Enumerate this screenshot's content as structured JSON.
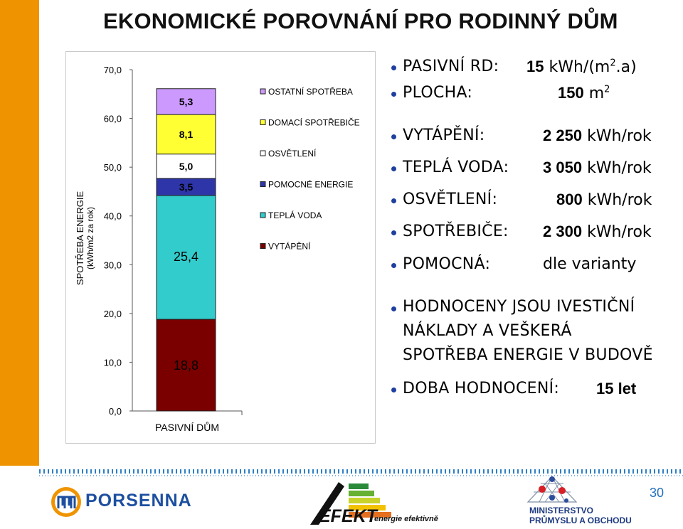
{
  "title": "EKONOMICKÉ POROVNÁNÍ PRO RODINNÝ DŮM",
  "chart_data": {
    "type": "bar",
    "stacked": true,
    "categories": [
      "PASIVNÍ DŮM"
    ],
    "ylabel": "SPOTŘEBA ENERGIE (kWh/m2 za rok)",
    "ylim": [
      0,
      70
    ],
    "yticks": [
      "0,0",
      "10,0",
      "20,0",
      "30,0",
      "40,0",
      "50,0",
      "60,0",
      "70,0"
    ],
    "series": [
      {
        "name": "VYTÁPĚNÍ",
        "values": [
          18.8
        ],
        "label": "18,8",
        "color": "#7a0000"
      },
      {
        "name": "TEPLÁ VODA",
        "values": [
          25.4
        ],
        "label": "25,4",
        "color": "#33cccc"
      },
      {
        "name": "POMOCNÉ ENERGIE",
        "values": [
          3.5
        ],
        "label": "3,5",
        "color": "#2e35a8"
      },
      {
        "name": "OSVĚTLENÍ",
        "values": [
          5.0
        ],
        "label": "5,0",
        "color": "#ffffff"
      },
      {
        "name": "DOMACÍ SPOTŘEBIČE",
        "values": [
          8.1
        ],
        "label": "8,1",
        "color": "#ffff33"
      },
      {
        "name": "OSTATNÍ SPOTŘEBA",
        "values": [
          5.3
        ],
        "label": "5,3",
        "color": "#cc99ff"
      }
    ],
    "legend_order": [
      "OSTATNÍ SPOTŘEBA",
      "DOMACÍ SPOTŘEBIČE",
      "OSVĚTLENÍ",
      "POMOCNÉ ENERGIE",
      "TEPLÁ VODA",
      "VYTÁPĚNÍ"
    ],
    "legend_position": "right"
  },
  "bullets": {
    "pasivni_label": "PASIVNÍ RD:",
    "pasivni_num": "15",
    "pasivni_unit": "kWh/(m",
    "pasivni_sup": "2",
    "pasivni_tail": ".a)",
    "plocha_label": "PLOCHA:",
    "plocha_num": "150",
    "plocha_unit": "m",
    "plocha_sup": "2",
    "items": [
      {
        "label": "VYTÁPĚNÍ:",
        "num": "2 250",
        "unit": "kWh/rok"
      },
      {
        "label": "TEPLÁ VODA:",
        "num": "3 050",
        "unit": "kWh/rok"
      },
      {
        "label": "OSVĚTLENÍ:",
        "num": "800",
        "unit": "kWh/rok"
      },
      {
        "label": "SPOTŘEBIČE:",
        "num": "2 300",
        "unit": "kWh/rok"
      },
      {
        "label": "POMOCNÁ:",
        "num": "",
        "unit": "dle varianty"
      }
    ],
    "hodnoceny_lines": [
      "HODNOCENY JSOU IVESTIČNÍ",
      "NÁKLADY A VEŠKERÁ",
      "SPOTŘEBA ENERGIE V BUDOVĚ"
    ],
    "doba_label": "DOBA HODNOCENÍ:",
    "doba_value": "15 let"
  },
  "footer": {
    "page_number": "30",
    "porsenna": "PORSENNA",
    "efekt": "EFEKT",
    "efekt_sub": "energie efektivně",
    "ministerstvo_1": "MINISTERSTVO",
    "ministerstvo_2": "PRŮMYSLU A OBCHODU",
    "colors": {
      "accent": "#ef9400",
      "bullet": "#1f3f9f",
      "porsenna": "#1d4fa0"
    }
  }
}
